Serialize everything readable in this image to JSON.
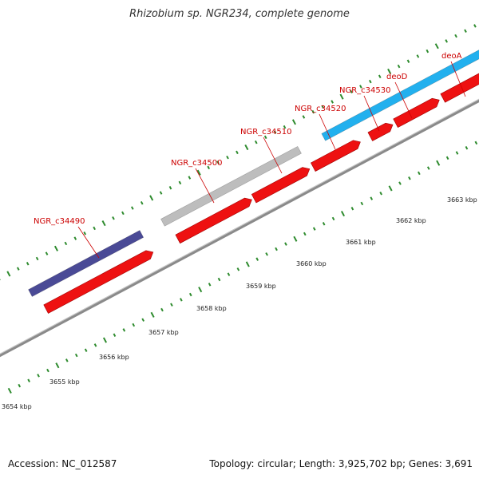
{
  "title": "Rhizobium sp. NGR234, complete genome",
  "footer": {
    "accession": "Accession: NC_012587",
    "summary": "Topology: circular; Length: 3,925,702 bp; Genes: 3,691"
  },
  "colors": {
    "cds": "#ee1111",
    "backbone": "#8a8a8a",
    "tick": "#2e8b2e",
    "label": "#cc0000",
    "gene_purple": "#4a4a96",
    "gene_grey": "#bdbdbd",
    "gene_cyan": "#22b0ee"
  },
  "scale_labels": [
    "3654 kbp",
    "3655 kbp",
    "3656 kbp",
    "3657 kbp",
    "3658 kbp",
    "3659 kbp",
    "3660 kbp",
    "3661 kbp",
    "3662 kbp",
    "3663 kbp"
  ],
  "gene_labels": [
    "NGR_c34490",
    "NGR_c34500",
    "NGR_c34510",
    "NGR_c34520",
    "NGR_c34530",
    "deoD",
    "deoA"
  ]
}
